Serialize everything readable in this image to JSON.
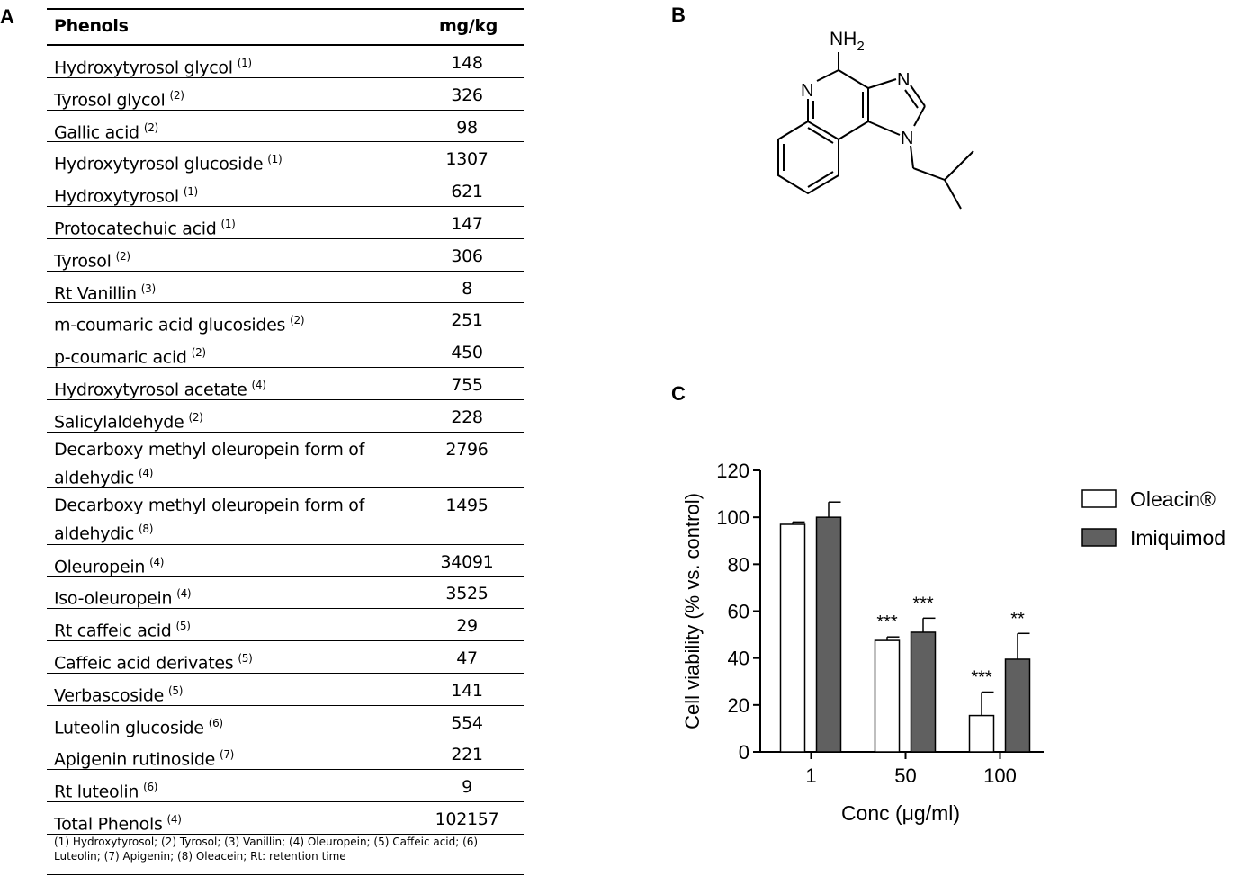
{
  "panels": [
    "A",
    "B",
    "C"
  ],
  "table": {
    "header": [
      "Phenols",
      "mg/kg"
    ],
    "rows": [
      [
        "Hydroxytyrosol glycol",
        "(1)",
        148
      ],
      [
        "Tyrosol glycol",
        "(2)",
        326
      ],
      [
        "Gallic acid",
        "(2)",
        98
      ],
      [
        "Hydroxytyrosol glucoside",
        "(1)",
        1307
      ],
      [
        "Hydroxytyrosol",
        "(1)",
        621
      ],
      [
        "Protocatechuic acid",
        "(1)",
        147
      ],
      [
        "Tyrosol",
        "(2)",
        306
      ],
      [
        "Rt Vanillin",
        "(3)",
        8
      ],
      [
        "m-coumaric acid glucosides",
        "(2)",
        251
      ],
      [
        "p-coumaric acid",
        "(2)",
        450
      ],
      [
        "Hydroxytyrosol acetate",
        "(4)",
        755
      ],
      [
        "Salicylaldehyde",
        "(2)",
        228
      ],
      [
        "Decarboxy methyl oleuropein form of aldehydic",
        "(4)",
        2796
      ],
      [
        "Decarboxy methyl oleuropein form of aldehydic",
        "(8)",
        1495
      ],
      [
        "Oleuropein",
        "(4)",
        34091
      ],
      [
        "Iso-oleuropein",
        "(4)",
        3525
      ],
      [
        "Rt caffeic acid",
        "(5)",
        29
      ],
      [
        "Caffeic acid derivates",
        "(5)",
        47
      ],
      [
        "Verbascoside",
        "(5)",
        141
      ],
      [
        "Luteolin glucoside",
        "(6)",
        554
      ],
      [
        "Apigenin rutinoside",
        "(7)",
        221
      ],
      [
        "Rt luteolin",
        "(6)",
        9
      ],
      [
        "Total Phenols",
        "(4)",
        102157
      ]
    ],
    "footnote": "(1) Hydroxytyrosol; (2) Tyrosol; (3) Vanillin; (4) Oleuropein; (5) Caffeic acid; (6) Luteolin; (7) Apigenin; (8) Oleacein; Rt: retention time"
  },
  "structure": {
    "amine": "NH",
    "amine_sub": "2",
    "atoms": [
      "N",
      "N",
      "N"
    ]
  },
  "chart_data": {
    "type": "bar",
    "x_label": "Conc (μg/ml)",
    "y_label": "Cell viability (% vs. control)",
    "categories": [
      "1",
      "50",
      "100"
    ],
    "series": [
      {
        "name": "Oleacin®",
        "color": "#ffffff",
        "values": [
          97,
          47.5,
          15.5
        ],
        "errors": [
          1,
          1.5,
          10
        ],
        "annotations": [
          null,
          "***",
          "***"
        ]
      },
      {
        "name": "Imiquimod",
        "color": "#606060",
        "values": [
          100,
          51,
          39.5
        ],
        "errors": [
          6.5,
          6,
          11
        ],
        "annotations": [
          null,
          "***",
          "**"
        ]
      }
    ],
    "ylim": [
      0,
      120
    ],
    "yticks": [
      0,
      20,
      40,
      60,
      80,
      100,
      120
    ]
  }
}
